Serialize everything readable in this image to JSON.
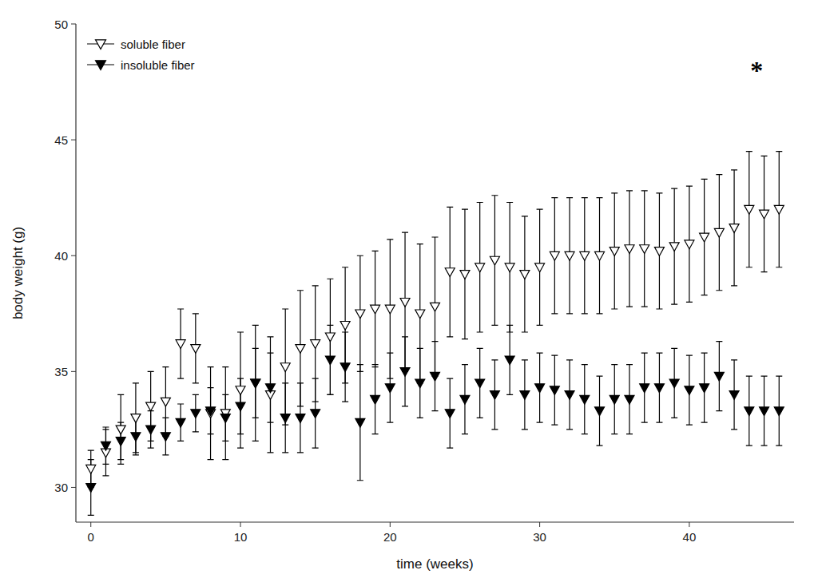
{
  "chart_data": {
    "type": "scatter",
    "x_label": "time (weeks)",
    "y_label": "body weight (g)",
    "xlim": [
      -1,
      47
    ],
    "ylim": [
      28.5,
      50
    ],
    "xticks": [
      0,
      10,
      20,
      30,
      40
    ],
    "yticks": [
      30,
      35,
      40,
      45,
      50
    ],
    "grid": false,
    "legend": "upper left",
    "x": [
      0,
      1,
      2,
      3,
      4,
      5,
      6,
      7,
      8,
      9,
      10,
      11,
      12,
      13,
      14,
      15,
      16,
      17,
      18,
      19,
      20,
      21,
      22,
      23,
      24,
      25,
      26,
      27,
      28,
      29,
      30,
      31,
      32,
      33,
      34,
      35,
      36,
      37,
      38,
      39,
      40,
      41,
      42,
      43,
      44,
      45,
      46
    ],
    "series": [
      {
        "name": "soluble fiber",
        "color": "#000000",
        "marker": "open-triangle-down",
        "values": [
          30.8,
          31.5,
          32.5,
          33.0,
          33.5,
          33.7,
          36.2,
          36.0,
          33.2,
          33.2,
          34.2,
          34.5,
          34.0,
          35.2,
          36.0,
          36.2,
          36.5,
          37.0,
          37.5,
          37.7,
          37.7,
          38.0,
          37.5,
          37.8,
          39.3,
          39.2,
          39.5,
          39.8,
          39.5,
          39.2,
          39.5,
          40.0,
          40.0,
          40.0,
          40.0,
          40.2,
          40.3,
          40.3,
          40.2,
          40.4,
          40.5,
          40.8,
          41.0,
          41.2,
          42.0,
          41.8,
          42.0
        ],
        "errors": [
          0.8,
          1.0,
          1.5,
          1.5,
          1.5,
          1.5,
          1.5,
          1.5,
          2.0,
          2.0,
          2.5,
          2.5,
          2.5,
          2.5,
          2.5,
          2.5,
          2.5,
          2.5,
          2.5,
          2.5,
          3.0,
          3.0,
          3.0,
          3.0,
          2.8,
          2.8,
          2.8,
          2.8,
          2.8,
          2.5,
          2.5,
          2.5,
          2.5,
          2.5,
          2.5,
          2.5,
          2.5,
          2.5,
          2.5,
          2.5,
          2.5,
          2.5,
          2.5,
          2.5,
          2.5,
          2.5,
          2.5
        ]
      },
      {
        "name": "insoluble fiber",
        "color": "#000000",
        "marker": "filled-triangle-down",
        "values": [
          30.0,
          31.8,
          32.0,
          32.2,
          32.5,
          32.2,
          32.8,
          33.2,
          33.3,
          33.0,
          33.5,
          34.5,
          34.3,
          33.0,
          33.0,
          33.2,
          35.5,
          35.2,
          32.8,
          33.8,
          34.3,
          35.0,
          34.5,
          34.8,
          33.2,
          33.8,
          34.5,
          34.0,
          35.5,
          34.0,
          34.3,
          34.2,
          34.0,
          33.8,
          33.3,
          33.8,
          33.8,
          34.3,
          34.3,
          34.5,
          34.2,
          34.3,
          34.8,
          34.0,
          33.3,
          33.3,
          33.3
        ],
        "errors": [
          1.2,
          0.8,
          0.8,
          0.8,
          0.8,
          0.8,
          0.8,
          0.8,
          1.0,
          1.0,
          1.2,
          1.5,
          1.5,
          1.5,
          1.5,
          1.5,
          1.5,
          1.5,
          2.5,
          1.5,
          1.5,
          1.5,
          1.5,
          1.5,
          1.5,
          1.5,
          1.5,
          1.5,
          1.5,
          1.5,
          1.5,
          1.5,
          1.5,
          1.5,
          1.5,
          1.5,
          1.5,
          1.5,
          1.5,
          1.5,
          1.5,
          1.5,
          1.5,
          1.5,
          1.5,
          1.5,
          1.5
        ]
      }
    ],
    "annotations": [
      {
        "text": "*",
        "x": 44.5,
        "y": 48.0
      }
    ]
  }
}
